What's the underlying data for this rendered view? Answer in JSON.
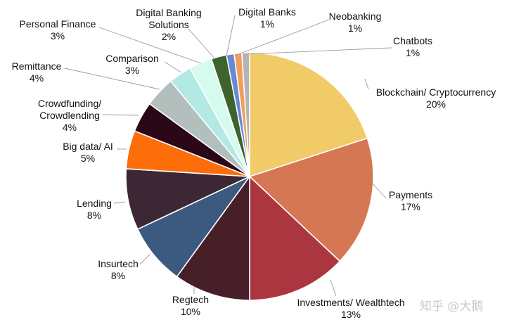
{
  "chart_data": {
    "type": "pie",
    "title": "",
    "slices": [
      {
        "label": "Blockchain/ Cryptocurrency",
        "value": 20,
        "value_label": "20%",
        "color": "#f0cb68"
      },
      {
        "label": "Payments",
        "value": 17,
        "value_label": "17%",
        "color": "#d57752"
      },
      {
        "label": "Investments/ Wealthtech",
        "value": 13,
        "value_label": "13%",
        "color": "#ac3640"
      },
      {
        "label": "Regtech",
        "value": 10,
        "value_label": "10%",
        "color": "#471f28"
      },
      {
        "label": "Insurtech",
        "value": 8,
        "value_label": "8%",
        "color": "#3c5a80"
      },
      {
        "label": "Lending",
        "value": 8,
        "value_label": "8%",
        "color": "#3e2735"
      },
      {
        "label": "Big data/ AI",
        "value": 5,
        "value_label": "5%",
        "color": "#fd6d0a"
      },
      {
        "label": "Crowdfunding/ Crowdlending",
        "value": 4,
        "value_label": "4%",
        "color": "#2b0718"
      },
      {
        "label": "Remittance",
        "value": 4,
        "value_label": "4%",
        "color": "#b2bfbd"
      },
      {
        "label": "Comparison",
        "value": 3,
        "value_label": "3%",
        "color": "#b3e9e5"
      },
      {
        "label": "Personal Finance",
        "value": 3,
        "value_label": "3%",
        "color": "#d4fbee"
      },
      {
        "label": "Digital Banking Solutions",
        "value": 2,
        "value_label": "2%",
        "color": "#3e632d"
      },
      {
        "label": "Digital Banks",
        "value": 1,
        "value_label": "1%",
        "color": "#6889d4"
      },
      {
        "label": "Neobanking",
        "value": 1,
        "value_label": "1%",
        "color": "#f29d5a"
      },
      {
        "label": "Chatbots",
        "value": 1,
        "value_label": "1%",
        "color": "#b4b4b4"
      }
    ]
  },
  "watermark": "知乎 @大鹅"
}
